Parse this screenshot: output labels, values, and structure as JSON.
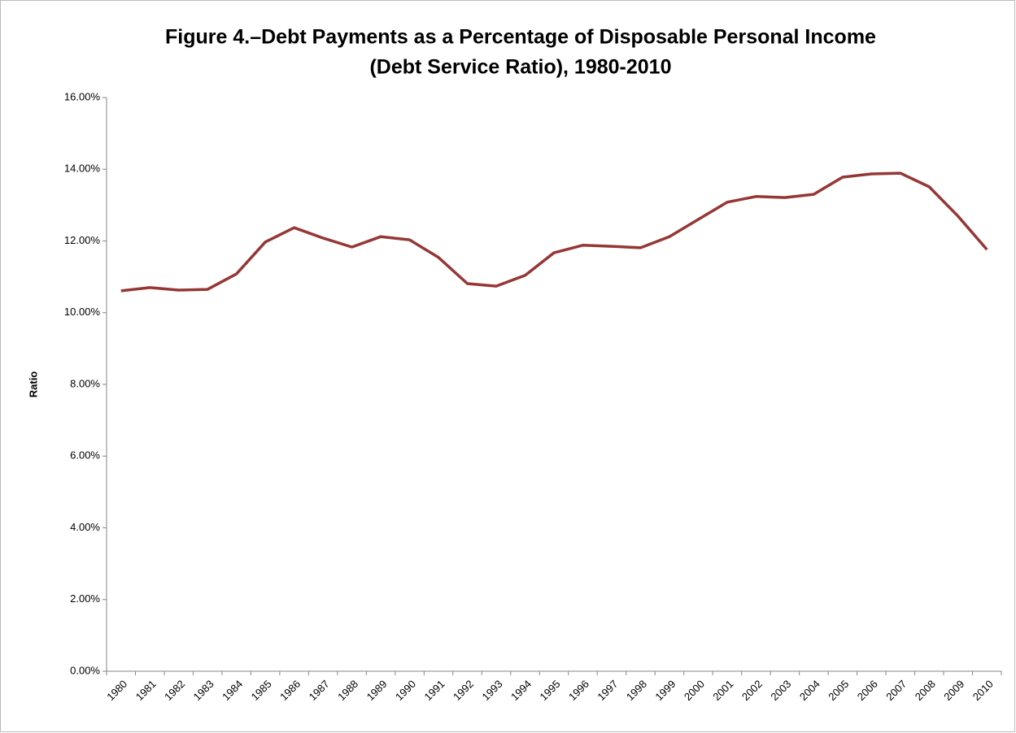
{
  "chart_data": {
    "type": "line",
    "title": [
      "Figure 4.–Debt Payments as a Percentage of Disposable Personal Income",
      "(Debt Service Ratio), 1980-2010"
    ],
    "y_label": "Ratio",
    "categories": [
      "1980",
      "1981",
      "1982",
      "1983",
      "1984",
      "1985",
      "1986",
      "1987",
      "1988",
      "1989",
      "1990",
      "1991",
      "1992",
      "1993",
      "1994",
      "1995",
      "1996",
      "1997",
      "1998",
      "1999",
      "2000",
      "2001",
      "2002",
      "2003",
      "2004",
      "2005",
      "2006",
      "2007",
      "2008",
      "2009",
      "2010"
    ],
    "series": [
      {
        "name": "Debt Service Ratio",
        "color": "#953735",
        "values": [
          10.61,
          10.7,
          10.63,
          10.65,
          11.08,
          11.97,
          12.37,
          12.08,
          11.83,
          12.12,
          12.03,
          11.54,
          10.81,
          10.74,
          11.04,
          11.67,
          11.88,
          11.85,
          11.81,
          12.12,
          12.6,
          13.08,
          13.24,
          13.21,
          13.3,
          13.78,
          13.87,
          13.89,
          13.51,
          12.69,
          11.76
        ]
      }
    ],
    "ylim": [
      0,
      16
    ],
    "yticks": [
      {
        "value": 0,
        "label": "0.00%"
      },
      {
        "value": 2,
        "label": "2.00%"
      },
      {
        "value": 4,
        "label": "4.00%"
      },
      {
        "value": 6,
        "label": "6.00%"
      },
      {
        "value": 8,
        "label": "8.00%"
      },
      {
        "value": 10,
        "label": "10.00%"
      },
      {
        "value": 12,
        "label": "12.00%"
      },
      {
        "value": 14,
        "label": "14.00%"
      },
      {
        "value": 16,
        "label": "16.00%"
      }
    ],
    "grid": false
  }
}
